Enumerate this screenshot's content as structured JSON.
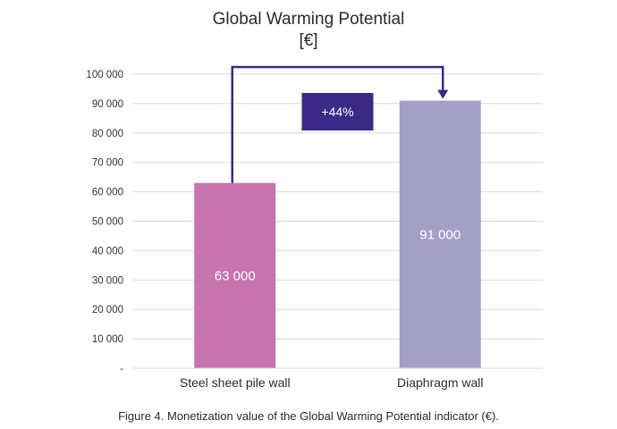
{
  "chart_data": {
    "type": "bar",
    "title": "Global Warming Potential",
    "subtitle": "[€]",
    "categories": [
      "Steel sheet pile wall",
      "Diaphragm wall"
    ],
    "values": [
      63000,
      91000
    ],
    "data_labels": [
      "63 000",
      "91 000"
    ],
    "bar_colors": [
      "#c874b0",
      "#a49fc4"
    ],
    "ylim": [
      0,
      100000
    ],
    "y_ticks": [
      0,
      10000,
      20000,
      30000,
      40000,
      50000,
      60000,
      70000,
      80000,
      90000,
      100000
    ],
    "y_tick_labels": [
      "-",
      "10 000",
      "20 000",
      "30 000",
      "40 000",
      "50 000",
      "60 000",
      "70 000",
      "80 000",
      "90 000",
      "100 000"
    ],
    "grid": true,
    "annotation": {
      "text": "+44%",
      "color": "#3b2a85"
    },
    "xlabel": "",
    "ylabel": ""
  },
  "caption": "Figure 4. Monetization value of the Global Warming Potential indicator (€)."
}
